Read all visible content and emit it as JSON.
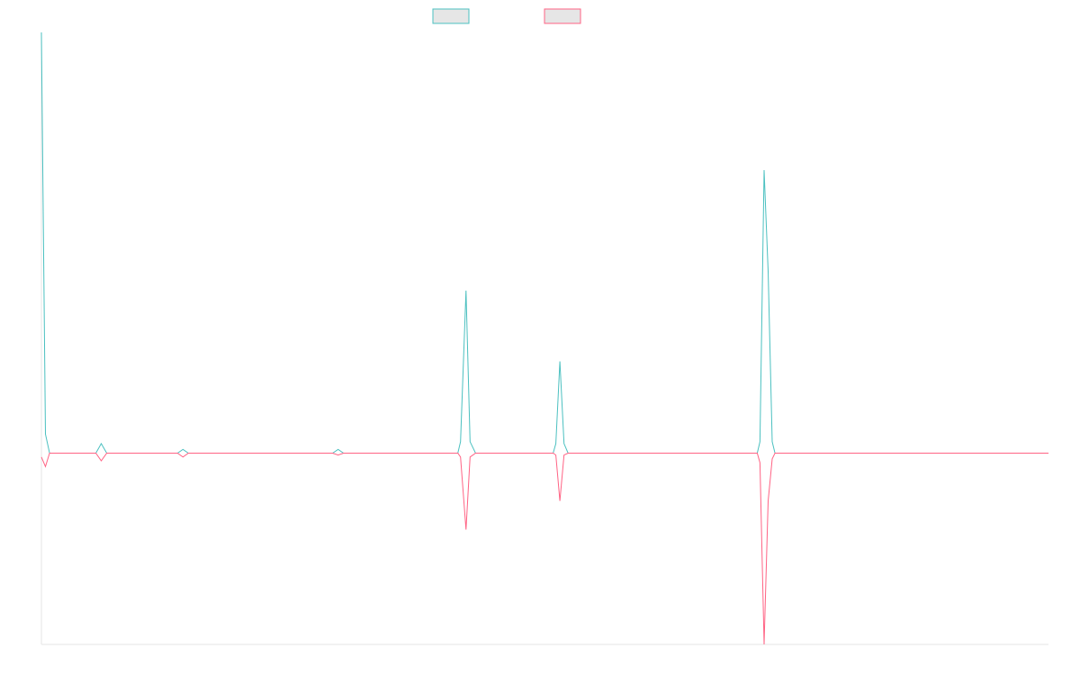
{
  "chart_data": {
    "type": "line",
    "title": "",
    "xlabel": "",
    "ylabel": "",
    "grid": false,
    "legend_placement": "top-center",
    "ylim": [
      -1,
      2.2
    ],
    "xlim": [
      0,
      148
    ],
    "series": [
      {
        "color": "#4bc0c0",
        "points": [
          [
            0,
            2.2
          ],
          [
            0.6,
            0.1
          ],
          [
            1.2,
            0
          ],
          [
            8,
            0
          ],
          [
            8.8,
            0.05
          ],
          [
            9.6,
            0
          ],
          [
            20,
            0
          ],
          [
            20.8,
            0.02
          ],
          [
            21.6,
            0
          ],
          [
            42.8,
            0
          ],
          [
            43.6,
            0.02
          ],
          [
            44.4,
            0
          ],
          [
            61.2,
            0
          ],
          [
            61.6,
            0.06
          ],
          [
            62.4,
            0.85
          ],
          [
            63,
            0.06
          ],
          [
            63.8,
            0
          ],
          [
            75.2,
            0
          ],
          [
            75.6,
            0.05
          ],
          [
            76.2,
            0.48
          ],
          [
            76.8,
            0.05
          ],
          [
            77.4,
            0
          ],
          [
            105.2,
            0
          ],
          [
            105.6,
            0.06
          ],
          [
            106.2,
            1.48
          ],
          [
            106.8,
            0.95
          ],
          [
            107.4,
            0.06
          ],
          [
            107.8,
            0
          ],
          [
            148,
            0
          ]
        ]
      },
      {
        "color": "#ff6384",
        "points": [
          [
            0,
            -0.02
          ],
          [
            0.6,
            -0.07
          ],
          [
            1.2,
            0
          ],
          [
            8,
            0
          ],
          [
            8.8,
            -0.04
          ],
          [
            9.6,
            0
          ],
          [
            20,
            0
          ],
          [
            20.8,
            -0.02
          ],
          [
            21.6,
            0
          ],
          [
            42.8,
            0
          ],
          [
            43.6,
            -0.01
          ],
          [
            44.4,
            0
          ],
          [
            61.2,
            0
          ],
          [
            61.6,
            -0.02
          ],
          [
            62.4,
            -0.4
          ],
          [
            63,
            -0.02
          ],
          [
            63.8,
            0
          ],
          [
            75.2,
            0
          ],
          [
            75.6,
            -0.01
          ],
          [
            76.2,
            -0.25
          ],
          [
            76.8,
            -0.01
          ],
          [
            77.4,
            0
          ],
          [
            105.2,
            0
          ],
          [
            105.6,
            -0.05
          ],
          [
            106.2,
            -1.0
          ],
          [
            106.8,
            -0.25
          ],
          [
            107.4,
            -0.03
          ],
          [
            107.8,
            0
          ],
          [
            148,
            0
          ]
        ]
      }
    ]
  }
}
